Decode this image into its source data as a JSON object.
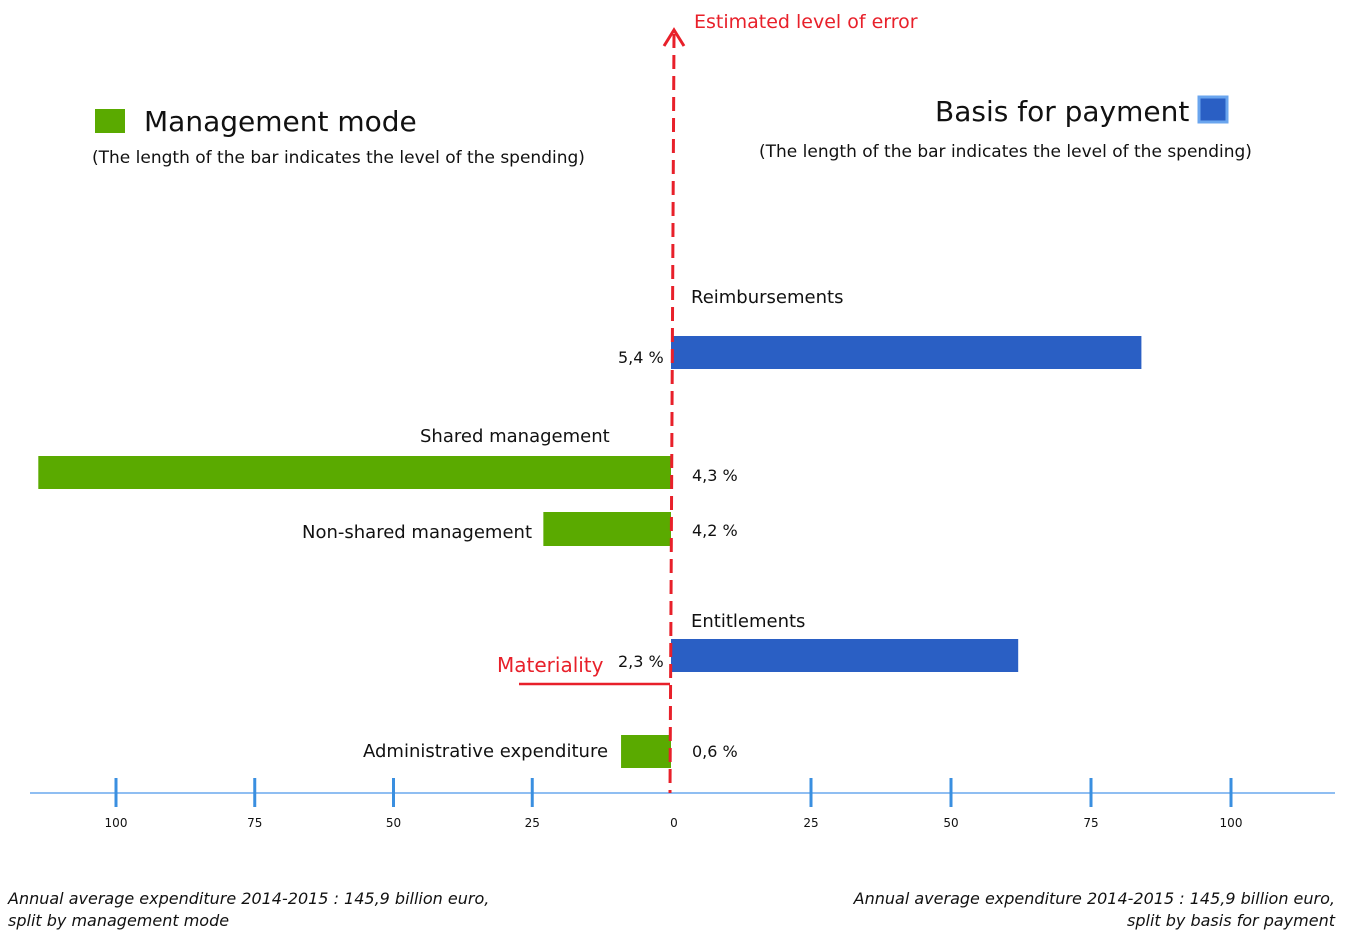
{
  "chart_data": {
    "type": "bar",
    "axis_title": "Estimated level of error",
    "materiality_label": "Materiality",
    "materiality_value": 2,
    "left_panel": {
      "title": "Management mode",
      "subtitle": "(The length of the bar indicates  the level of the spending)",
      "color": "#5aaa00",
      "categories": [
        {
          "label": "Shared management",
          "error": "4,3 %",
          "error_value": 4.3,
          "spending": 114
        },
        {
          "label": "Non-shared management",
          "error": "4,2 %",
          "error_value": 4.2,
          "spending": 23
        },
        {
          "label": "Administrative expenditure",
          "error": "0,6 %",
          "error_value": 0.6,
          "spending": 9
        }
      ],
      "note_line1": "Annual average expenditure 2014-2015 :  145,9 billion euro,",
      "note_line2": "split by management mode"
    },
    "right_panel": {
      "title": "Basis for payment",
      "subtitle": "(The length of the bar indicates  the level of the spending)",
      "color": "#2a5fc4",
      "categories": [
        {
          "label": "Reimbursements",
          "error": "5,4 %",
          "error_value": 5.4,
          "spending": 84
        },
        {
          "label": "Entitlements",
          "error": "2,3 %",
          "error_value": 2.3,
          "spending": 62
        }
      ],
      "note_line1": "Annual average expenditure 2014-2015 : 145,9  billion euro,",
      "note_line2": "split by basis for payment"
    },
    "x_ticks_left": [
      "100",
      "75",
      "50",
      "25"
    ],
    "x_ticks_right": [
      "0",
      "25",
      "50",
      "75",
      "100"
    ],
    "xlim": [
      -100,
      100
    ],
    "axis_color": "#3a8fe0",
    "axis_line_color": "#e8202a"
  }
}
